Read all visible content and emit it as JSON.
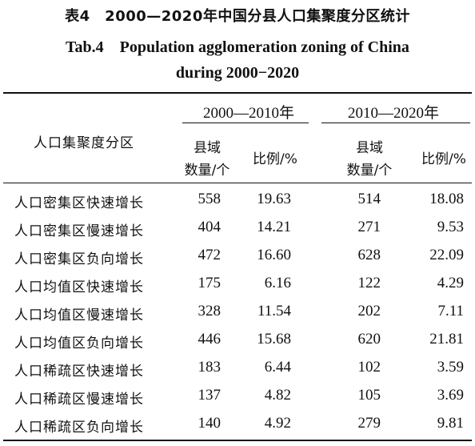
{
  "title": {
    "cn": "表4　2000—2020年中国分县人口集聚度分区统计",
    "en_line1": "Tab.4　Population agglomeration zoning of China",
    "en_line2": "during 2000−2020"
  },
  "table": {
    "row_header": "人口集聚度分区",
    "groups": [
      "2000—2010年",
      "2010—2020年"
    ],
    "sub_headers": {
      "count_line1": "县域",
      "count_line2": "数量/个",
      "ratio": "比例/%"
    },
    "rows": [
      {
        "label": "人口密集区快速增长",
        "c1": "558",
        "p1": "19.63",
        "c2": "514",
        "p2": "18.08"
      },
      {
        "label": "人口密集区慢速增长",
        "c1": "404",
        "p1": "14.21",
        "c2": "271",
        "p2": "9.53"
      },
      {
        "label": "人口密集区负向增长",
        "c1": "472",
        "p1": "16.60",
        "c2": "628",
        "p2": "22.09"
      },
      {
        "label": "人口均值区快速增长",
        "c1": "175",
        "p1": "6.16",
        "c2": "122",
        "p2": "4.29"
      },
      {
        "label": "人口均值区慢速增长",
        "c1": "328",
        "p1": "11.54",
        "c2": "202",
        "p2": "7.11"
      },
      {
        "label": "人口均值区负向增长",
        "c1": "446",
        "p1": "15.68",
        "c2": "620",
        "p2": "21.81"
      },
      {
        "label": "人口稀疏区快速增长",
        "c1": "183",
        "p1": "6.44",
        "c2": "102",
        "p2": "3.59"
      },
      {
        "label": "人口稀疏区慢速增长",
        "c1": "137",
        "p1": "4.82",
        "c2": "105",
        "p2": "3.69"
      },
      {
        "label": "人口稀疏区负向增长",
        "c1": "140",
        "p1": "4.92",
        "c2": "279",
        "p2": "9.81"
      }
    ]
  }
}
